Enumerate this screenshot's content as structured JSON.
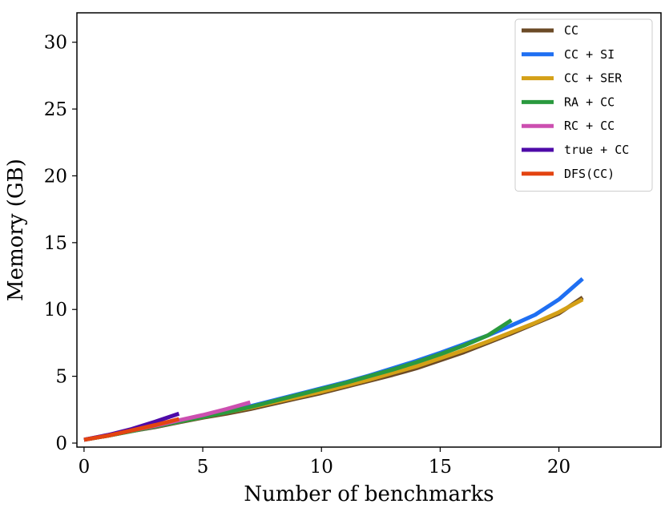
{
  "chart_data": {
    "type": "line",
    "xlabel": "Number of benchmarks",
    "ylabel": "Memory (GB)",
    "xlim": [
      -0.3,
      24.3
    ],
    "ylim": [
      -0.3,
      32.2
    ],
    "xticks": [
      0,
      5,
      10,
      15,
      20
    ],
    "yticks": [
      0,
      5,
      10,
      15,
      20,
      25,
      30
    ],
    "grid": false,
    "legend_position": "top-right",
    "series": [
      {
        "name": "CC",
        "color": "#6b4a26",
        "x": [
          0,
          1,
          2,
          3,
          4,
          5,
          6,
          7,
          8,
          9,
          10,
          11,
          12,
          13,
          14,
          15,
          16,
          17,
          18,
          19,
          20,
          21
        ],
        "y": [
          0.25,
          0.55,
          0.9,
          1.2,
          1.55,
          1.9,
          2.2,
          2.55,
          2.95,
          3.35,
          3.75,
          4.2,
          4.65,
          5.1,
          5.6,
          6.2,
          6.8,
          7.5,
          8.2,
          8.95,
          9.7,
          10.9
        ]
      },
      {
        "name": "CC + SI",
        "color": "#1f6ff2",
        "x": [
          0,
          1,
          2,
          3,
          4,
          5,
          6,
          7,
          8,
          9,
          10,
          11,
          12,
          13,
          14,
          15,
          16,
          17,
          18,
          19,
          20,
          21
        ],
        "y": [
          0.25,
          0.55,
          0.9,
          1.25,
          1.6,
          2.0,
          2.4,
          2.75,
          3.2,
          3.65,
          4.1,
          4.55,
          5.05,
          5.6,
          6.15,
          6.75,
          7.4,
          8.05,
          8.8,
          9.6,
          10.75,
          12.3
        ]
      },
      {
        "name": "CC + SER",
        "color": "#d4a017",
        "x": [
          0,
          1,
          2,
          3,
          4,
          5,
          6,
          7,
          8,
          9,
          10,
          11,
          12,
          13,
          14,
          15,
          16,
          17,
          18,
          19,
          20,
          21
        ],
        "y": [
          0.25,
          0.55,
          0.9,
          1.25,
          1.6,
          1.95,
          2.3,
          2.65,
          3.05,
          3.45,
          3.85,
          4.3,
          4.75,
          5.25,
          5.75,
          6.35,
          6.95,
          7.6,
          8.3,
          9.0,
          9.8,
          10.75
        ]
      },
      {
        "name": "RA + CC",
        "color": "#2a9a3e",
        "x": [
          0,
          1,
          2,
          3,
          4,
          5,
          6,
          7,
          8,
          9,
          10,
          11,
          12,
          13,
          14,
          15,
          16,
          17,
          18
        ],
        "y": [
          0.25,
          0.55,
          0.9,
          1.25,
          1.6,
          1.95,
          2.3,
          2.7,
          3.15,
          3.6,
          4.05,
          4.5,
          5.0,
          5.5,
          6.05,
          6.65,
          7.3,
          8.05,
          9.2
        ]
      },
      {
        "name": "RC + CC",
        "color": "#cc4fb0",
        "x": [
          0,
          1,
          2,
          3,
          4,
          5,
          6,
          7
        ],
        "y": [
          0.25,
          0.6,
          0.95,
          1.3,
          1.7,
          2.1,
          2.55,
          3.05
        ]
      },
      {
        "name": "true + CC",
        "color": "#4e0aa8",
        "x": [
          0,
          1,
          2,
          3,
          4
        ],
        "y": [
          0.25,
          0.6,
          1.05,
          1.6,
          2.2
        ]
      },
      {
        "name": "DFS(CC)",
        "color": "#e34411",
        "x": [
          0,
          1,
          2,
          3,
          4
        ],
        "y": [
          0.25,
          0.55,
          0.95,
          1.35,
          1.8
        ]
      }
    ]
  }
}
